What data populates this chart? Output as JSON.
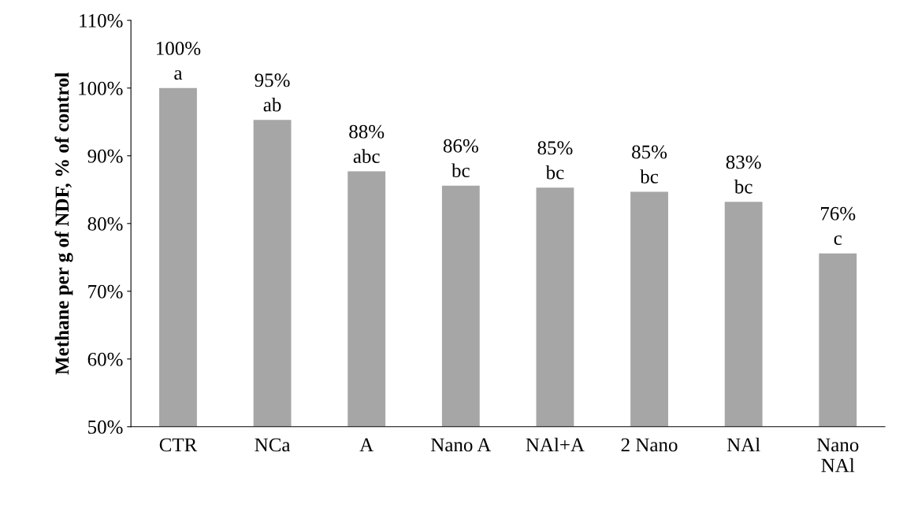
{
  "chart_data": {
    "type": "bar",
    "ylabel": "Methane per g of NDF, % of control",
    "categories": [
      "CTR",
      "NCa",
      "A",
      "Nano A",
      "NAl+A",
      "2 Nano",
      "NAl",
      "Nano\nNAl"
    ],
    "values": [
      100,
      95.3,
      87.7,
      85.6,
      85.3,
      84.7,
      83.2,
      75.6
    ],
    "value_labels": [
      "100%\na",
      "95%\nab",
      "88%\nabc",
      "86%\nbc",
      "85%\nbc",
      "85%\nbc",
      "83%\nbc",
      "76%\nc"
    ],
    "color": "#a6a6a6",
    "ylim": [
      50,
      110
    ],
    "yticks": [
      {
        "value": 50,
        "label": "50%"
      },
      {
        "value": 60,
        "label": "60%"
      },
      {
        "value": 70,
        "label": "70%"
      },
      {
        "value": 80,
        "label": "80%"
      },
      {
        "value": 90,
        "label": "90%"
      },
      {
        "value": 100,
        "label": "100%"
      },
      {
        "value": 110,
        "label": "110%"
      }
    ],
    "grid": false,
    "legend": false
  }
}
